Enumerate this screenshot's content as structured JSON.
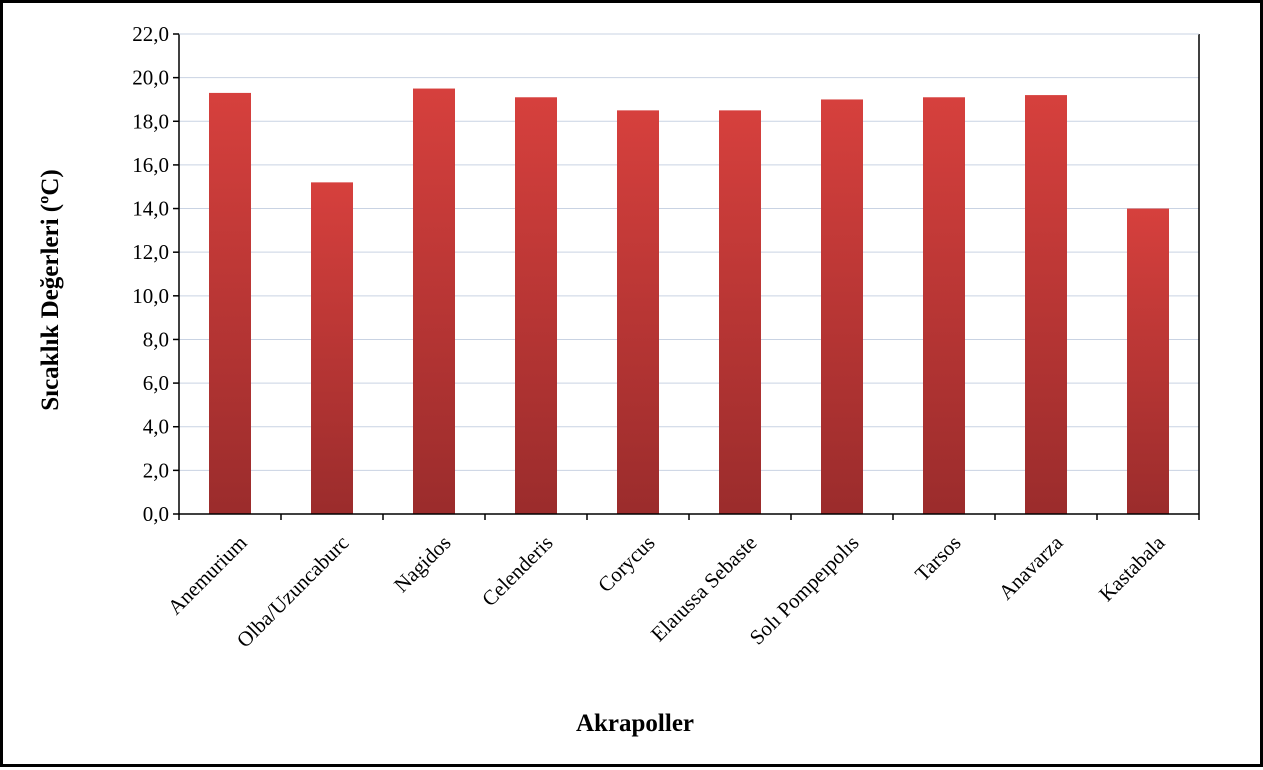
{
  "chart_data": {
    "type": "bar",
    "title": "",
    "xlabel": "Akrapoller",
    "ylabel": "Sıcaklık Değerleri (ºC)",
    "categories": [
      "Anemurium",
      "Olba/Uzuncaburc",
      "Nagidos",
      "Celenderis",
      "Corycus",
      "Elaıussa Sebaste",
      "Solı Pompeıpolıs",
      "Tarsos",
      "Anavarza",
      "Kastabala"
    ],
    "values": [
      19.3,
      15.2,
      19.5,
      19.1,
      18.5,
      18.5,
      19.0,
      19.1,
      19.2,
      14.0
    ],
    "ylim": [
      0,
      22
    ],
    "ytick_step": 2,
    "ytick_labels": [
      "0,0",
      "2,0",
      "4,0",
      "6,0",
      "8,0",
      "10,0",
      "12,0",
      "14,0",
      "16,0",
      "18,0",
      "20,0",
      "22,0"
    ],
    "grid": true,
    "legend": "none",
    "colors": {
      "bar_top": "#d6403d",
      "bar_bottom": "#9b2c2c",
      "gridline": "#c9d3e3",
      "axis": "#000000"
    }
  }
}
